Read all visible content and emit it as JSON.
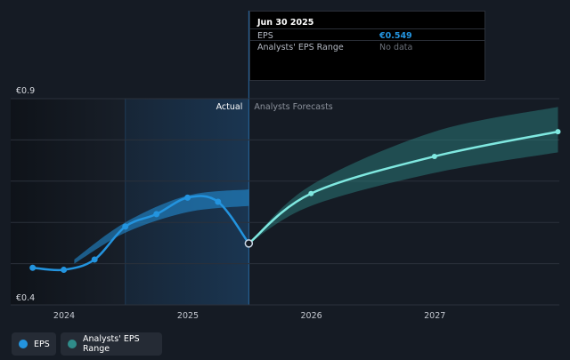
{
  "tooltip": {
    "date": "Jun 30 2025",
    "rows": [
      {
        "label": "EPS",
        "value": "€0.549"
      },
      {
        "label": "Analysts' EPS Range",
        "value": "No data"
      }
    ]
  },
  "legend": {
    "eps_label": "EPS",
    "range_label": "Analysts' EPS Range"
  },
  "colors": {
    "background": "#151b24",
    "eps": "#2394df",
    "forecast": "#7fe8e0",
    "range": "#2f8c8a",
    "actual_highlight": "#1b3a59"
  },
  "chart_data": {
    "type": "line",
    "ylim": [
      0.4,
      0.9
    ],
    "y_tick_labels": [
      {
        "value": 0.9,
        "label": "€0.9"
      },
      {
        "value": 0.4,
        "label": "€0.4"
      }
    ],
    "x_ticks": [
      "2024",
      "2025",
      "2026",
      "2027"
    ],
    "section_labels": {
      "actual": "Actual",
      "forecast": "Analysts Forecasts"
    },
    "actual_date": "2025-06-30",
    "highlight_start": "2024-06-30",
    "grid": true,
    "series": [
      {
        "name": "EPS",
        "points": [
          {
            "x": "2023-09-30",
            "y": 0.49
          },
          {
            "x": "2023-12-31",
            "y": 0.485
          },
          {
            "x": "2024-03-31",
            "y": 0.51
          },
          {
            "x": "2024-06-30",
            "y": 0.59
          },
          {
            "x": "2024-09-30",
            "y": 0.62
          },
          {
            "x": "2024-12-31",
            "y": 0.66
          },
          {
            "x": "2025-03-31",
            "y": 0.65
          },
          {
            "x": "2025-06-30",
            "y": 0.549
          }
        ]
      },
      {
        "name": "EPS Forecast",
        "points": [
          {
            "x": "2025-06-30",
            "y": 0.549
          },
          {
            "x": "2025-12-31",
            "y": 0.67
          },
          {
            "x": "2026-12-31",
            "y": 0.76
          },
          {
            "x": "2027-12-31",
            "y": 0.82
          }
        ]
      }
    ],
    "ranges": [
      {
        "name": "Analysts' EPS Range (historical)",
        "points": [
          {
            "x": "2024-01-31",
            "low": 0.5,
            "high": 0.51
          },
          {
            "x": "2024-06-30",
            "low": 0.575,
            "high": 0.6
          },
          {
            "x": "2024-12-31",
            "low": 0.625,
            "high": 0.665
          },
          {
            "x": "2025-06-30",
            "low": 0.64,
            "high": 0.68
          }
        ]
      },
      {
        "name": "Analysts' EPS Range",
        "points": [
          {
            "x": "2025-06-30",
            "low": 0.549,
            "high": 0.549
          },
          {
            "x": "2025-12-31",
            "low": 0.64,
            "high": 0.69
          },
          {
            "x": "2026-12-31",
            "low": 0.72,
            "high": 0.82
          },
          {
            "x": "2027-12-31",
            "low": 0.77,
            "high": 0.88
          }
        ]
      }
    ]
  }
}
